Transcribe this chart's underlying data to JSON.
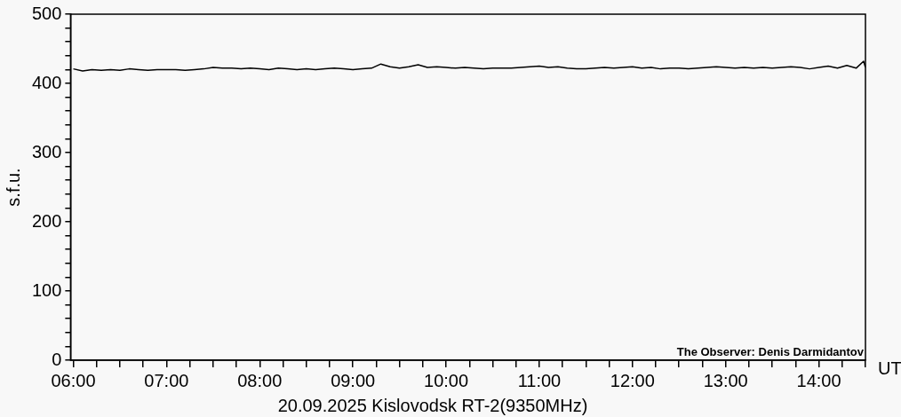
{
  "chart_data": {
    "type": "line",
    "title": "20.09.2025 Kislovodsk RT-2(9350MHz)",
    "xlabel": "UT",
    "ylabel": "s.f.u.",
    "annotations": [
      "The Observer: Denis Darmidantov"
    ],
    "x": [
      6.0,
      6.1,
      6.2,
      6.3,
      6.4,
      6.5,
      6.6,
      6.7,
      6.8,
      6.9,
      7.0,
      7.1,
      7.2,
      7.3,
      7.4,
      7.5,
      7.6,
      7.7,
      7.8,
      7.9,
      8.0,
      8.1,
      8.2,
      8.3,
      8.4,
      8.5,
      8.6,
      8.7,
      8.8,
      8.9,
      9.0,
      9.1,
      9.2,
      9.3,
      9.4,
      9.5,
      9.6,
      9.7,
      9.8,
      9.9,
      10.0,
      10.1,
      10.2,
      10.3,
      10.4,
      10.5,
      10.6,
      10.7,
      10.8,
      10.9,
      11.0,
      11.1,
      11.2,
      11.3,
      11.4,
      11.5,
      11.6,
      11.7,
      11.8,
      11.9,
      12.0,
      12.1,
      12.2,
      12.3,
      12.4,
      12.5,
      12.6,
      12.7,
      12.8,
      12.9,
      13.0,
      13.1,
      13.2,
      13.3,
      13.4,
      13.5,
      13.6,
      13.7,
      13.8,
      13.9,
      14.0,
      14.1,
      14.2,
      14.3,
      14.4,
      14.48,
      14.5
    ],
    "series": [
      {
        "color": "#000000",
        "values": [
          421,
          418,
          420,
          419,
          420,
          419,
          421,
          420,
          419,
          420,
          420,
          420,
          419,
          420,
          421,
          423,
          422,
          422,
          421,
          422,
          421,
          420,
          422,
          421,
          420,
          421,
          420,
          421,
          422,
          421,
          420,
          421,
          422,
          428,
          424,
          422,
          424,
          427,
          423,
          424,
          423,
          422,
          423,
          422,
          421,
          422,
          422,
          422,
          423,
          424,
          425,
          423,
          424,
          422,
          421,
          421,
          422,
          423,
          422,
          423,
          424,
          422,
          423,
          421,
          422,
          422,
          421,
          422,
          423,
          424,
          423,
          422,
          423,
          422,
          423,
          422,
          423,
          424,
          423,
          421,
          423,
          425,
          422,
          426,
          422,
          432,
          423
        ]
      }
    ],
    "xlim": [
      5.97,
      14.5
    ],
    "ylim": [
      0,
      500
    ],
    "xticks": [
      {
        "value": 6,
        "label": "06:00"
      },
      {
        "value": 6.25,
        "label": null
      },
      {
        "value": 6.5,
        "label": null
      },
      {
        "value": 6.75,
        "label": null
      },
      {
        "value": 7,
        "label": "07:00"
      },
      {
        "value": 7.25,
        "label": null
      },
      {
        "value": 7.5,
        "label": null
      },
      {
        "value": 7.75,
        "label": null
      },
      {
        "value": 8,
        "label": "08:00"
      },
      {
        "value": 8.25,
        "label": null
      },
      {
        "value": 8.5,
        "label": null
      },
      {
        "value": 8.75,
        "label": null
      },
      {
        "value": 9,
        "label": "09:00"
      },
      {
        "value": 9.25,
        "label": null
      },
      {
        "value": 9.5,
        "label": null
      },
      {
        "value": 9.75,
        "label": null
      },
      {
        "value": 10,
        "label": "10:00"
      },
      {
        "value": 10.25,
        "label": null
      },
      {
        "value": 10.5,
        "label": null
      },
      {
        "value": 10.75,
        "label": null
      },
      {
        "value": 11,
        "label": "11:00"
      },
      {
        "value": 11.25,
        "label": null
      },
      {
        "value": 11.5,
        "label": null
      },
      {
        "value": 11.75,
        "label": null
      },
      {
        "value": 12,
        "label": "12:00"
      },
      {
        "value": 12.25,
        "label": null
      },
      {
        "value": 12.5,
        "label": null
      },
      {
        "value": 12.75,
        "label": null
      },
      {
        "value": 13,
        "label": "13:00"
      },
      {
        "value": 13.25,
        "label": null
      },
      {
        "value": 13.5,
        "label": null
      },
      {
        "value": 13.75,
        "label": null
      },
      {
        "value": 14,
        "label": "14:00"
      },
      {
        "value": 14.25,
        "label": null
      },
      {
        "value": 14.5,
        "label": null
      }
    ],
    "yticks": [
      0,
      {
        "value": 20,
        "label": null
      },
      {
        "value": 40,
        "label": null
      },
      {
        "value": 60,
        "label": null
      },
      {
        "value": 80,
        "label": null
      },
      100,
      {
        "value": 120,
        "label": null
      },
      {
        "value": 140,
        "label": null
      },
      {
        "value": 160,
        "label": null
      },
      {
        "value": 180,
        "label": null
      },
      200,
      {
        "value": 220,
        "label": null
      },
      {
        "value": 240,
        "label": null
      },
      {
        "value": 260,
        "label": null
      },
      {
        "value": 280,
        "label": null
      },
      300,
      {
        "value": 320,
        "label": null
      },
      {
        "value": 340,
        "label": null
      },
      {
        "value": 360,
        "label": null
      },
      {
        "value": 380,
        "label": null
      },
      400,
      {
        "value": 420,
        "label": null
      },
      {
        "value": 440,
        "label": null
      },
      {
        "value": 460,
        "label": null
      },
      {
        "value": 480,
        "label": null
      },
      500
    ],
    "grid": false,
    "legend": false,
    "marker": "none",
    "line_style": "solid"
  }
}
